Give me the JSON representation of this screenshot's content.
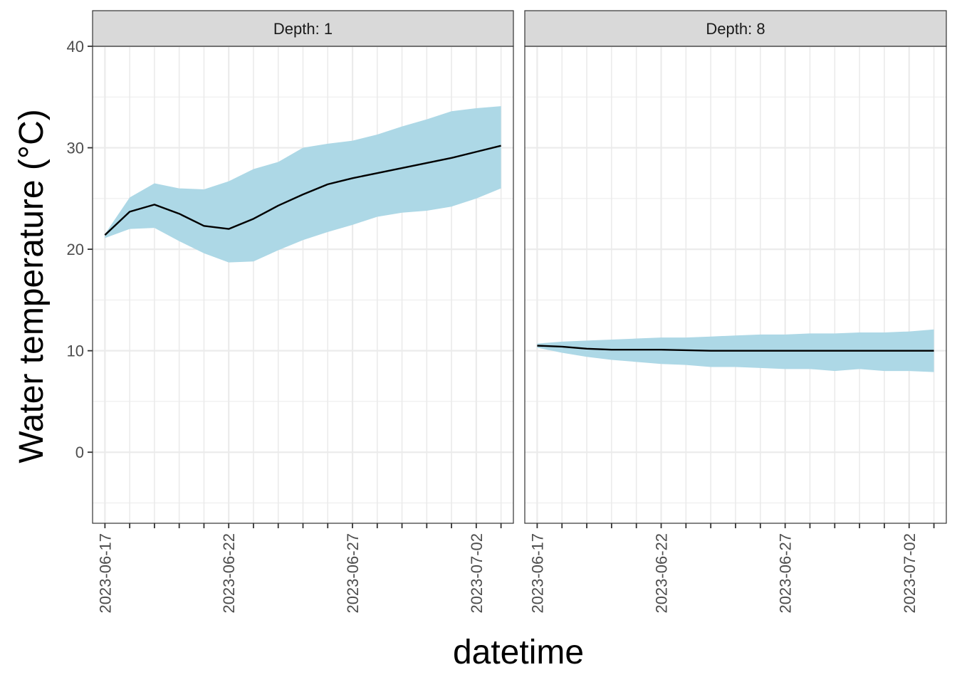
{
  "chart_data": {
    "type": "line",
    "subtype": "faceted line with ribbon (uncertainty band)",
    "xlabel": "datetime",
    "ylabel": "Water temperature (°C)",
    "xlim": [
      "2023-06-16T12:00",
      "2023-07-03T12:00"
    ],
    "ylim": [
      -7,
      40
    ],
    "y_ticks": [
      0,
      10,
      20,
      30,
      40
    ],
    "x_tick_labels": [
      "2023-06-17",
      "2023-06-22",
      "2023-06-27",
      "2023-07-02"
    ],
    "grid": true,
    "legend": "none",
    "colors": {
      "ribbon": "#add8e6",
      "line": "#000000",
      "strip_background": "#d9d9d9",
      "grid": "#ebebeb",
      "panel_border": "#333333"
    },
    "x": [
      "2023-06-17",
      "2023-06-18",
      "2023-06-19",
      "2023-06-20",
      "2023-06-21",
      "2023-06-22",
      "2023-06-23",
      "2023-06-24",
      "2023-06-25",
      "2023-06-26",
      "2023-06-27",
      "2023-06-28",
      "2023-06-29",
      "2023-06-30",
      "2023-07-01",
      "2023-07-02",
      "2023-07-03"
    ],
    "facets": [
      {
        "strip_label": "Depth: 1",
        "mean": [
          21.4,
          23.7,
          24.4,
          23.5,
          22.3,
          22.0,
          23.0,
          24.3,
          25.4,
          26.4,
          27.0,
          27.5,
          28.0,
          28.5,
          29.0,
          29.6,
          30.2
        ],
        "lower": [
          21.1,
          22.0,
          22.1,
          20.8,
          19.6,
          18.7,
          18.8,
          19.9,
          20.9,
          21.7,
          22.4,
          23.2,
          23.6,
          23.8,
          24.2,
          25.0,
          26.0
        ],
        "upper": [
          21.5,
          25.1,
          26.5,
          26.0,
          25.9,
          26.7,
          27.9,
          28.6,
          30.0,
          30.4,
          30.7,
          31.3,
          32.1,
          32.8,
          33.6,
          33.9,
          34.1
        ]
      },
      {
        "strip_label": "Depth: 8",
        "mean": [
          10.5,
          10.4,
          10.2,
          10.1,
          10.1,
          10.1,
          10.05,
          10.0,
          10.0,
          10.0,
          10.0,
          10.0,
          10.0,
          10.0,
          10.0,
          10.0,
          10.0
        ],
        "lower": [
          10.3,
          9.8,
          9.4,
          9.1,
          8.9,
          8.7,
          8.6,
          8.4,
          8.4,
          8.3,
          8.2,
          8.2,
          8.0,
          8.2,
          8.0,
          8.0,
          7.9
        ],
        "upper": [
          10.7,
          10.9,
          11.0,
          11.1,
          11.2,
          11.3,
          11.3,
          11.4,
          11.5,
          11.6,
          11.6,
          11.7,
          11.7,
          11.8,
          11.8,
          11.9,
          12.1
        ]
      }
    ]
  }
}
